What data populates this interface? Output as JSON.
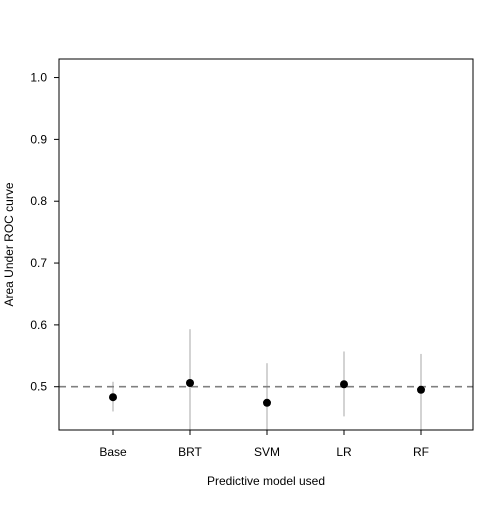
{
  "chart_data": {
    "type": "scatter",
    "title": "",
    "xlabel": "Predictive model used",
    "ylabel": "Area Under ROC curve",
    "ylim": [
      0.43,
      1.03
    ],
    "yticks": [
      0.5,
      0.6,
      0.7,
      0.8,
      0.9,
      1.0
    ],
    "ytick_labels": [
      "0.5",
      "0.6",
      "0.7",
      "0.8",
      "0.9",
      "1.0"
    ],
    "categories": [
      "Base",
      "BRT",
      "SVM",
      "LR",
      "RF"
    ],
    "values": [
      0.483,
      0.506,
      0.474,
      0.504,
      0.495
    ],
    "error_low": [
      0.46,
      0.43,
      0.43,
      0.452,
      0.43
    ],
    "error_high": [
      0.508,
      0.593,
      0.538,
      0.557,
      0.553
    ],
    "reference_line": 0.5,
    "grid": false,
    "colors": {
      "point": "#000000",
      "error_bar": "#d3d3d3",
      "reference_line": "#808080",
      "axis": "#000000"
    }
  }
}
